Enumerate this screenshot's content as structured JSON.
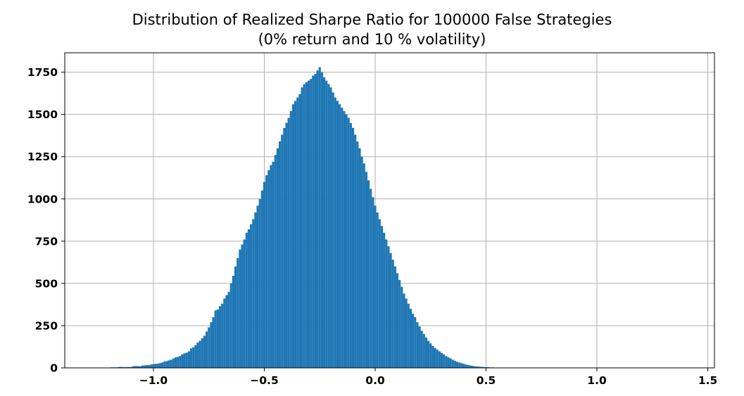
{
  "chart_data": {
    "type": "bar",
    "title": "Distribution of Realized Sharpe Ratio for 100000 False Strategies",
    "subtitle": "(0% return and 10 % volatility)",
    "xlabel": "",
    "ylabel": "",
    "xlim": [
      -1.4,
      1.53
    ],
    "ylim": [
      0,
      1865
    ],
    "grid": true,
    "bar_color": "#1f77b4",
    "x_ticks": [
      -1.0,
      -0.5,
      0.0,
      0.5,
      1.0,
      1.5
    ],
    "x_tick_labels": [
      "−1.0",
      "−0.5",
      "0.0",
      "0.5",
      "1.0",
      "1.5"
    ],
    "y_ticks": [
      0,
      250,
      500,
      750,
      1000,
      1250,
      1500,
      1750
    ],
    "y_tick_labels": [
      "0",
      "250",
      "500",
      "750",
      "1000",
      "1250",
      "1500",
      "1750"
    ],
    "bins": {
      "start": -1.335,
      "width": 0.01
    },
    "counts": [
      1,
      0,
      0,
      0,
      1,
      1,
      0,
      0,
      1,
      2,
      1,
      1,
      1,
      2,
      3,
      3,
      3,
      4,
      6,
      5,
      4,
      5,
      5,
      6,
      10,
      11,
      10,
      9,
      14,
      15,
      16,
      17,
      20,
      22,
      24,
      25,
      28,
      32,
      38,
      40,
      44,
      48,
      55,
      62,
      65,
      70,
      80,
      86,
      90,
      98,
      115,
      122,
      135,
      150,
      160,
      175,
      190,
      215,
      240,
      270,
      300,
      340,
      345,
      365,
      380,
      410,
      430,
      450,
      500,
      545,
      600,
      650,
      700,
      730,
      760,
      800,
      820,
      850,
      880,
      920,
      960,
      1000,
      1050,
      1100,
      1140,
      1170,
      1200,
      1220,
      1260,
      1300,
      1340,
      1380,
      1420,
      1450,
      1480,
      1520,
      1560,
      1580,
      1600,
      1620,
      1660,
      1680,
      1690,
      1700,
      1710,
      1730,
      1740,
      1760,
      1780,
      1750,
      1720,
      1700,
      1680,
      1660,
      1630,
      1600,
      1580,
      1560,
      1540,
      1520,
      1500,
      1480,
      1450,
      1420,
      1380,
      1340,
      1300,
      1250,
      1210,
      1160,
      1110,
      1060,
      1010,
      960,
      920,
      880,
      840,
      800,
      760,
      720,
      680,
      640,
      600,
      560,
      520,
      480,
      440,
      410,
      380,
      350,
      320,
      300,
      270,
      245,
      220,
      200,
      180,
      160,
      145,
      130,
      118,
      108,
      98,
      88,
      80,
      70,
      63,
      56,
      48,
      42,
      36,
      32,
      28,
      24,
      20,
      17,
      14,
      12,
      10,
      8,
      7,
      6,
      5,
      4,
      4,
      3,
      3,
      2,
      2,
      2,
      1,
      1,
      1,
      1
    ]
  }
}
